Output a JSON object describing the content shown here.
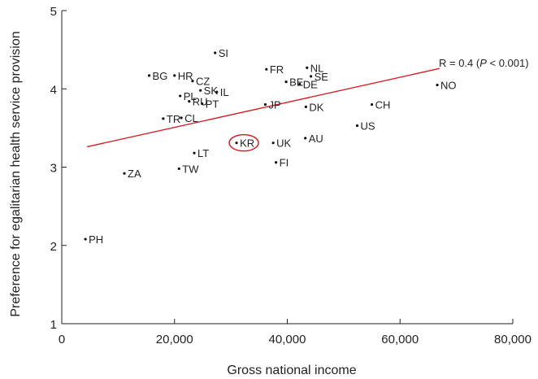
{
  "chart_data": {
    "type": "scatter",
    "xlabel": "Gross national income",
    "ylabel": "Preference for egalitarian health service provision",
    "xlim": [
      0,
      80000
    ],
    "ylim": [
      1,
      5
    ],
    "x_ticks": [
      0,
      20000,
      40000,
      60000,
      80000
    ],
    "x_tick_labels": [
      "0",
      "20,000",
      "40,000",
      "60,000",
      "80,000"
    ],
    "y_ticks": [
      1,
      2,
      3,
      4,
      5
    ],
    "y_tick_labels": [
      "1",
      "2",
      "3",
      "4",
      "5"
    ],
    "grid": false,
    "points": [
      {
        "label": "SI",
        "x": 27200,
        "y": 4.46
      },
      {
        "label": "BG",
        "x": 15500,
        "y": 4.17
      },
      {
        "label": "HR",
        "x": 20000,
        "y": 4.17
      },
      {
        "label": "CZ",
        "x": 23200,
        "y": 4.1
      },
      {
        "label": "SK",
        "x": 24600,
        "y": 3.98
      },
      {
        "label": "IL",
        "x": 27500,
        "y": 3.96
      },
      {
        "label": "PL",
        "x": 21000,
        "y": 3.91
      },
      {
        "label": "RU",
        "x": 22600,
        "y": 3.84
      },
      {
        "label": "PT",
        "x": 24900,
        "y": 3.81
      },
      {
        "label": "TR",
        "x": 18000,
        "y": 3.62
      },
      {
        "label": "CL",
        "x": 21200,
        "y": 3.63
      },
      {
        "label": "FR",
        "x": 36300,
        "y": 4.25
      },
      {
        "label": "NL",
        "x": 43500,
        "y": 4.27
      },
      {
        "label": "BE",
        "x": 39800,
        "y": 4.09
      },
      {
        "label": "SE",
        "x": 44200,
        "y": 4.16
      },
      {
        "label": "DE",
        "x": 42200,
        "y": 4.06
      },
      {
        "label": "JP",
        "x": 36100,
        "y": 3.8
      },
      {
        "label": "DK",
        "x": 43300,
        "y": 3.77
      },
      {
        "label": "CH",
        "x": 55000,
        "y": 3.8
      },
      {
        "label": "NO",
        "x": 66600,
        "y": 4.05
      },
      {
        "label": "US",
        "x": 52400,
        "y": 3.53
      },
      {
        "label": "KR",
        "x": 31000,
        "y": 3.31
      },
      {
        "label": "UK",
        "x": 37500,
        "y": 3.31
      },
      {
        "label": "AU",
        "x": 43200,
        "y": 3.37
      },
      {
        "label": "LT",
        "x": 23500,
        "y": 3.18
      },
      {
        "label": "FI",
        "x": 38000,
        "y": 3.06
      },
      {
        "label": "TW",
        "x": 20800,
        "y": 2.98
      },
      {
        "label": "ZA",
        "x": 11100,
        "y": 2.92
      },
      {
        "label": "PH",
        "x": 4200,
        "y": 2.08
      }
    ],
    "trend_line": {
      "x": [
        4500,
        67000
      ],
      "y": [
        3.26,
        4.26
      ],
      "color": "#cc2229"
    },
    "annotation": {
      "prefix": "R = 0.4 (",
      "p": "P",
      "suffix": " < 0.001)"
    },
    "highlight_label": "KR",
    "highlight_color": "#cc2229"
  }
}
